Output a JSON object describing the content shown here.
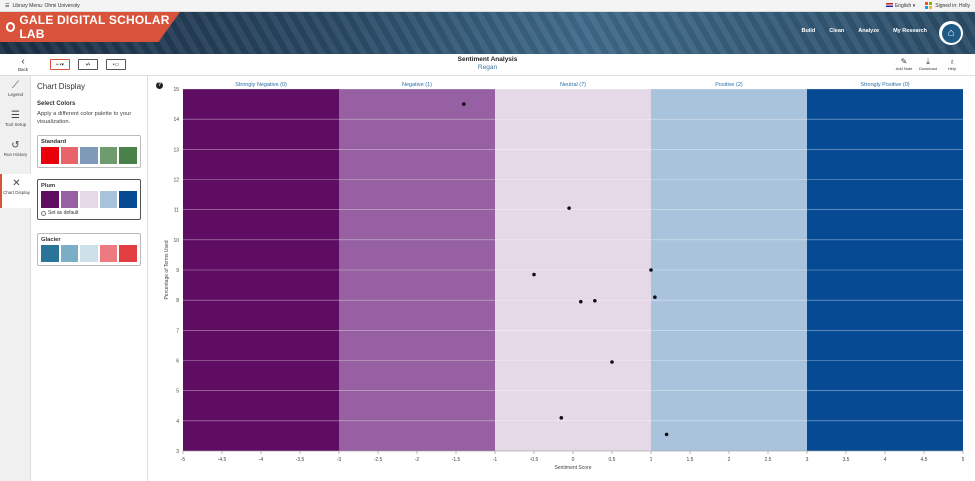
{
  "utility": {
    "library": "Library Menu: Ohmi University",
    "language": "English",
    "signed_in": "Signed in: Holly"
  },
  "brand": {
    "title": "GALE DIGITAL SCHOLAR LAB"
  },
  "nav": {
    "items": [
      "Build",
      "Clean",
      "Analyze",
      "My Research"
    ]
  },
  "toolbar": {
    "back_label": "Back",
    "title": "Sentiment Analysis",
    "subtitle": "Regan",
    "right_tools": [
      {
        "label": "Add Note",
        "icon": "note-icon"
      },
      {
        "label": "Download",
        "icon": "download-icon"
      },
      {
        "label": "Help",
        "icon": "lightbulb-icon"
      }
    ]
  },
  "rail": {
    "items": [
      {
        "label": "Legend",
        "icon": "legend-icon"
      },
      {
        "label": "Tool Setup",
        "icon": "sliders-icon"
      },
      {
        "label": "Run History",
        "icon": "history-icon"
      },
      {
        "label": "Chart Display",
        "icon": "tools-icon"
      }
    ]
  },
  "panel": {
    "title": "Chart Display",
    "heading": "Select Colors",
    "description": "Apply a different color palette to your visualization.",
    "palettes": [
      {
        "name": "Standard",
        "colors": [
          "#e8000b",
          "#e8636a",
          "#7e9ab8",
          "#6f9c6e",
          "#4a8049"
        ]
      },
      {
        "name": "Plum",
        "colors": [
          "#5e0d63",
          "#9660a2",
          "#e5d8e7",
          "#a9c3dd",
          "#064a94"
        ],
        "default_label": "Set as default"
      },
      {
        "name": "Glacier",
        "colors": [
          "#2a7497",
          "#7aaec7",
          "#cde0e8",
          "#ec7a80",
          "#e23d41"
        ]
      }
    ]
  },
  "chart_data": {
    "type": "scatter",
    "xlabel": "Sentiment Score",
    "ylabel": "Percentage of Terms Used",
    "xlim": [
      -5,
      5
    ],
    "ylim": [
      3,
      15
    ],
    "xticks": [
      -5,
      -4.5,
      -4,
      -3.5,
      -3,
      -2.5,
      -2,
      -1.5,
      -1,
      -0.5,
      0,
      0.5,
      1,
      1.5,
      2,
      2.5,
      3,
      3.5,
      4,
      4.5,
      5
    ],
    "yticks": [
      3,
      4,
      5,
      6,
      7,
      8,
      9,
      10,
      11,
      12,
      13,
      14,
      15
    ],
    "bands": [
      {
        "label": "Strongly Negative (0)",
        "from": -5,
        "to": -3,
        "color": "#5e0d63"
      },
      {
        "label": "Negative (1)",
        "from": -3,
        "to": -1,
        "color": "#9660a2"
      },
      {
        "label": "Neutral (7)",
        "from": -1,
        "to": 1,
        "color": "#e5d8e7"
      },
      {
        "label": "Positive (2)",
        "from": 1,
        "to": 3,
        "color": "#a9c3dd"
      },
      {
        "label": "Strongly Positive (0)",
        "from": 3,
        "to": 5,
        "color": "#064a94"
      }
    ],
    "points": [
      {
        "x": -1.4,
        "y": 14.5
      },
      {
        "x": -0.05,
        "y": 11.05
      },
      {
        "x": -0.5,
        "y": 8.85
      },
      {
        "x": 0.1,
        "y": 7.95
      },
      {
        "x": 0.28,
        "y": 7.98
      },
      {
        "x": 0.5,
        "y": 5.95
      },
      {
        "x": -0.15,
        "y": 4.1
      },
      {
        "x": 1.0,
        "y": 9.0
      },
      {
        "x": 1.05,
        "y": 8.1
      },
      {
        "x": 1.2,
        "y": 3.55
      }
    ]
  }
}
